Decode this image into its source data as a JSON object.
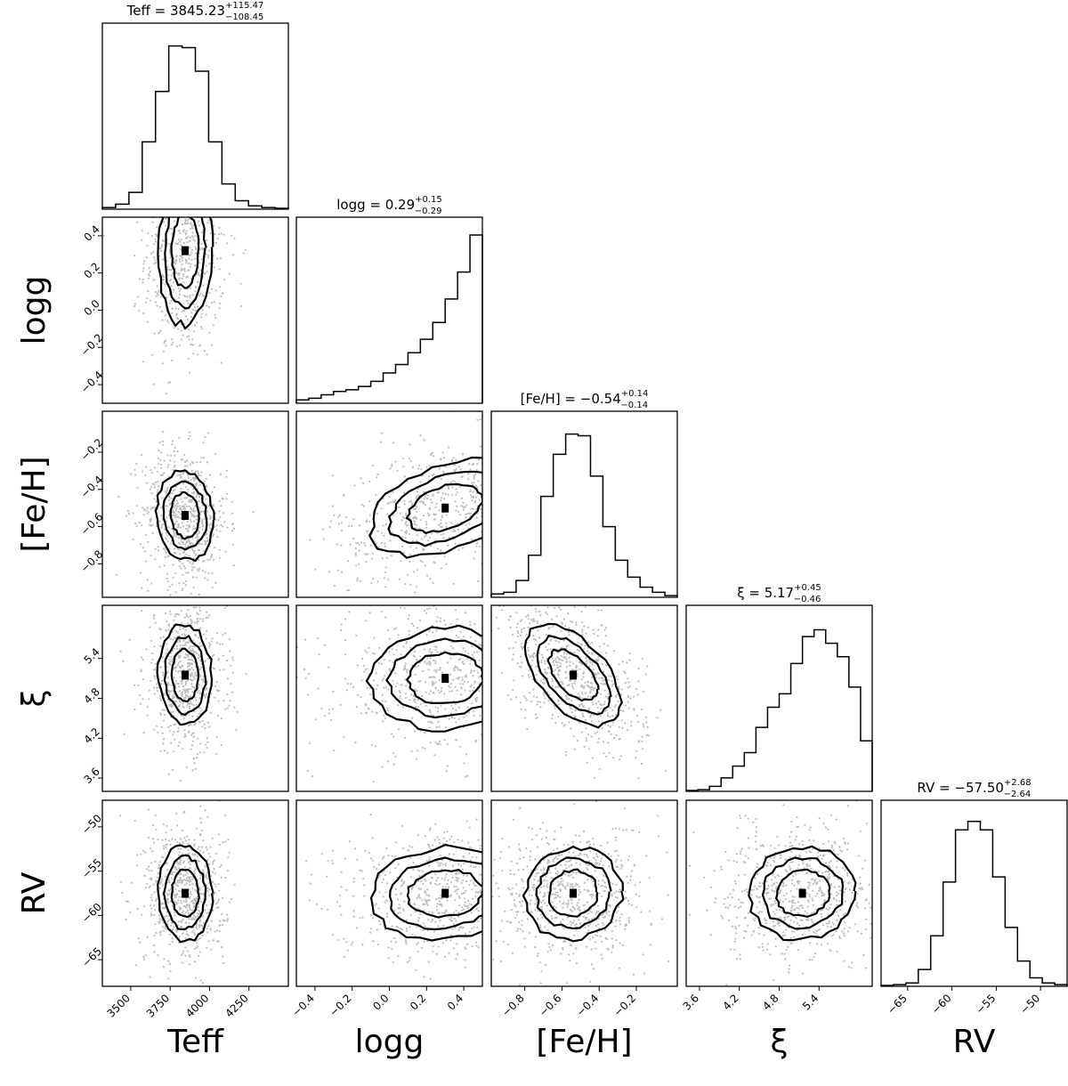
{
  "chart_data": {
    "type": "corner",
    "params": [
      {
        "key": "teff",
        "label": "Teff",
        "title_prefix": "Teff = ",
        "median": "3845.23",
        "plus": "+115.47",
        "minus": "−108.45",
        "range": [
          3320,
          4500
        ],
        "ticks": [
          3500,
          3750,
          4000,
          4250
        ],
        "ticklabels": [
          "3500",
          "3750",
          "4000",
          "4250"
        ],
        "hist": [
          0.01,
          0.03,
          0.1,
          0.4,
          0.7,
          0.97,
          0.96,
          0.82,
          0.4,
          0.15,
          0.05,
          0.02,
          0.01,
          0.005
        ]
      },
      {
        "key": "logg",
        "label": "logg",
        "title_prefix": "logg = ",
        "median": "0.29",
        "plus": "+0.15",
        "minus": "−0.29",
        "range": [
          -0.5,
          0.5
        ],
        "ticks": [
          -0.4,
          -0.2,
          0.0,
          0.2,
          0.4
        ],
        "ticklabels": [
          "−0.4",
          "−0.2",
          "0.0",
          "0.2",
          "0.4"
        ],
        "hist": [
          0.02,
          0.03,
          0.05,
          0.07,
          0.08,
          0.1,
          0.13,
          0.18,
          0.23,
          0.3,
          0.38,
          0.48,
          0.62,
          0.78,
          1.0
        ]
      },
      {
        "key": "feh",
        "label": "[Fe/H]",
        "title_prefix": "[Fe/H] = ",
        "median": "−0.54",
        "plus": "+0.14",
        "minus": "−0.14",
        "range": [
          -0.98,
          0.02
        ],
        "ticks": [
          -0.8,
          -0.6,
          -0.4,
          -0.2
        ],
        "ticklabels": [
          "−0.8",
          "−0.6",
          "−0.4",
          "−0.2"
        ],
        "hist": [
          0.02,
          0.03,
          0.1,
          0.25,
          0.6,
          0.85,
          0.97,
          0.96,
          0.72,
          0.42,
          0.22,
          0.12,
          0.06,
          0.03,
          0.01
        ]
      },
      {
        "key": "xi",
        "label": "ξ",
        "title_prefix": "ξ = ",
        "median": "5.17",
        "plus": "+0.45",
        "minus": "−0.46",
        "range": [
          3.4,
          6.2
        ],
        "ticks": [
          3.6,
          4.2,
          4.8,
          5.4
        ],
        "ticklabels": [
          "3.6",
          "4.2",
          "4.8",
          "5.4"
        ],
        "hist": [
          0.005,
          0.01,
          0.03,
          0.08,
          0.15,
          0.23,
          0.38,
          0.5,
          0.58,
          0.76,
          0.92,
          0.96,
          0.88,
          0.8,
          0.62,
          0.3
        ]
      },
      {
        "key": "rv",
        "label": "RV",
        "title_prefix": "RV = ",
        "median": "−57.50",
        "plus": "+2.68",
        "minus": "−2.64",
        "range": [
          -68,
          -47
        ],
        "ticks": [
          -65,
          -60,
          -55,
          -50
        ],
        "ticklabels": [
          "−65",
          "−60",
          "−55",
          "−50"
        ],
        "hist": [
          0.005,
          0.01,
          0.02,
          0.1,
          0.3,
          0.62,
          0.93,
          0.98,
          0.93,
          0.65,
          0.35,
          0.15,
          0.05,
          0.02,
          0.01
        ]
      }
    ],
    "pairs": [
      {
        "row": 1,
        "col": 0,
        "mean": [
          3845,
          0.32
        ],
        "sd": [
          85,
          0.2
        ],
        "rho": 0.05
      },
      {
        "row": 2,
        "col": 0,
        "mean": [
          3845,
          -0.54
        ],
        "sd": [
          90,
          0.12
        ],
        "rho": -0.1
      },
      {
        "row": 2,
        "col": 1,
        "mean": [
          0.3,
          -0.5
        ],
        "sd": [
          0.2,
          0.13
        ],
        "rho": 0.4
      },
      {
        "row": 3,
        "col": 0,
        "mean": [
          3845,
          5.15
        ],
        "sd": [
          85,
          0.38
        ],
        "rho": -0.05
      },
      {
        "row": 3,
        "col": 1,
        "mean": [
          0.3,
          5.1
        ],
        "sd": [
          0.2,
          0.38
        ],
        "rho": 0.05
      },
      {
        "row": 3,
        "col": 2,
        "mean": [
          -0.54,
          5.15
        ],
        "sd": [
          0.13,
          0.38
        ],
        "rho": -0.55
      },
      {
        "row": 4,
        "col": 0,
        "mean": [
          3845,
          -57.5
        ],
        "sd": [
          85,
          2.7
        ],
        "rho": 0.0
      },
      {
        "row": 4,
        "col": 1,
        "mean": [
          0.3,
          -57.5
        ],
        "sd": [
          0.2,
          2.6
        ],
        "rho": 0.1
      },
      {
        "row": 4,
        "col": 2,
        "mean": [
          -0.54,
          -57.5
        ],
        "sd": [
          0.13,
          2.6
        ],
        "rho": 0.05
      },
      {
        "row": 4,
        "col": 3,
        "mean": [
          5.15,
          -57.5
        ],
        "sd": [
          0.4,
          2.6
        ],
        "rho": 0.05
      }
    ],
    "contour_levels": [
      1.0,
      1.5,
      2.0
    ]
  }
}
